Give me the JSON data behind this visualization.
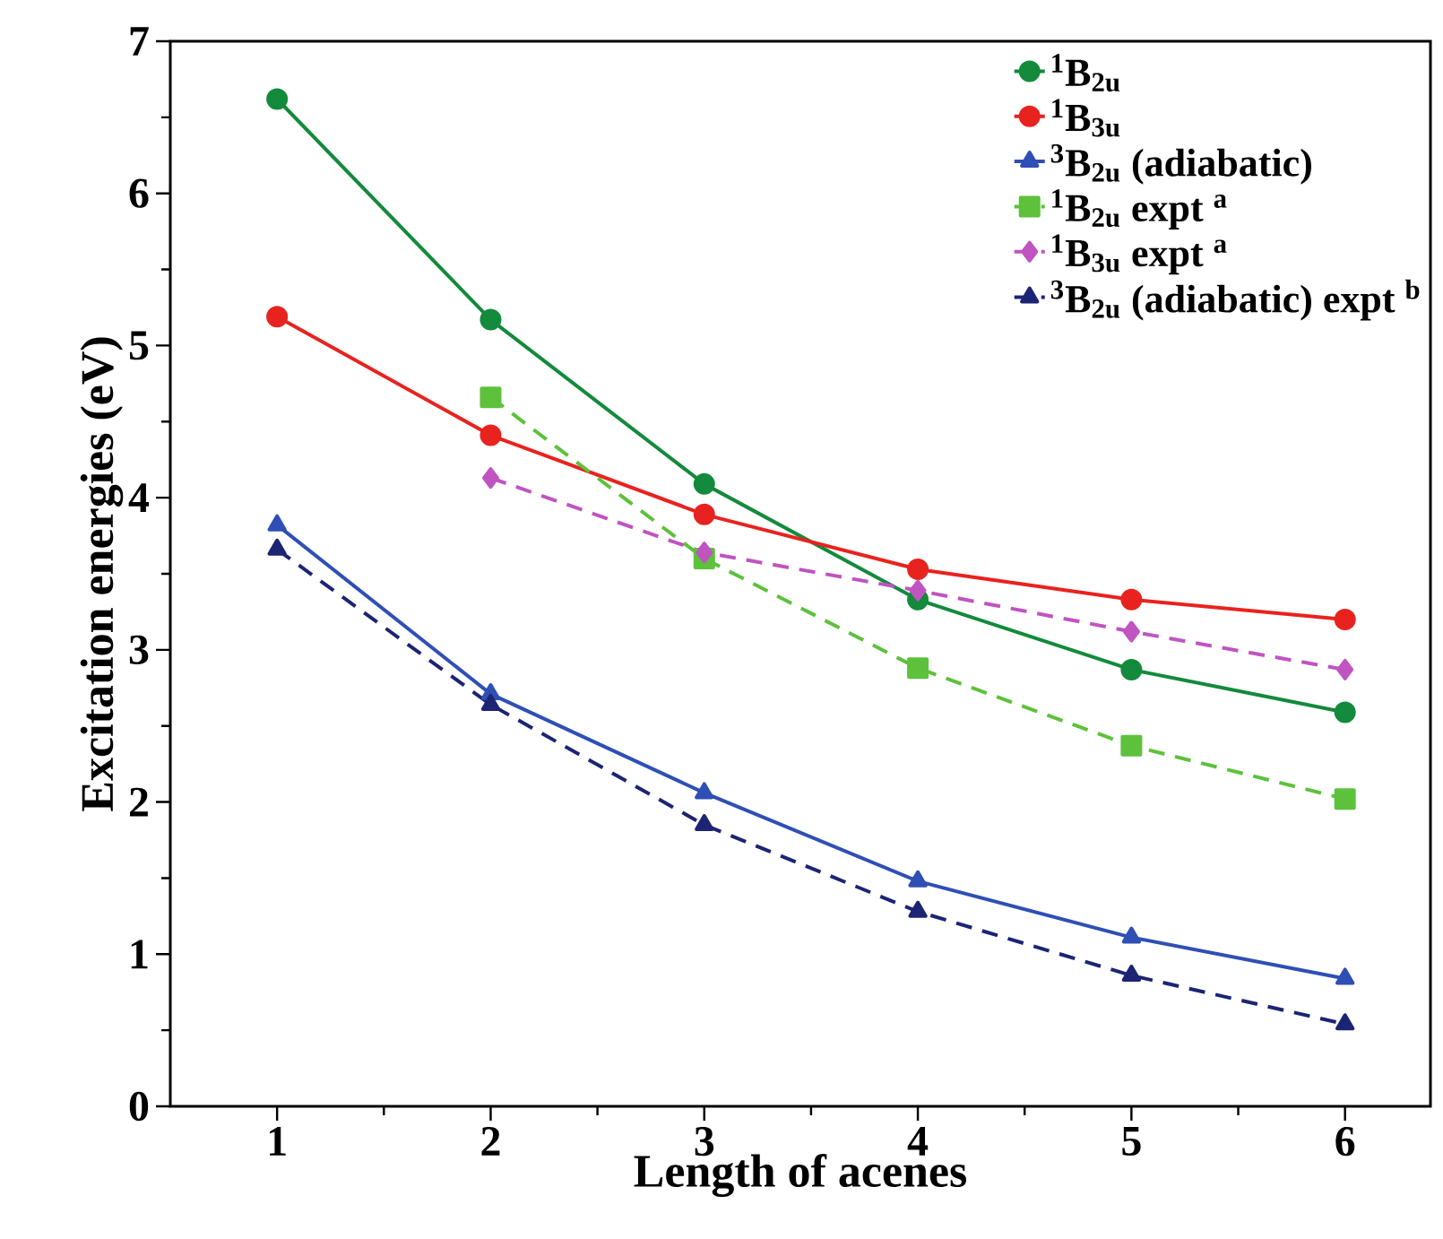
{
  "chart_data": {
    "type": "line",
    "xlabel": "Length of acenes",
    "ylabel": "Excitation energies (eV)",
    "x": [
      1,
      2,
      3,
      4,
      5,
      6
    ],
    "xlim": [
      0.5,
      6.4
    ],
    "ylim": [
      0,
      7
    ],
    "xticks": [
      1,
      2,
      3,
      4,
      5,
      6
    ],
    "yticks": [
      0,
      1,
      2,
      3,
      4,
      5,
      6,
      7
    ],
    "grid": false,
    "legend": "top right",
    "series": [
      {
        "name": "$^{1}$B$_{2u}$",
        "color": "#138a3c",
        "marker": "circle",
        "line_style": "solid",
        "values": [
          6.62,
          5.17,
          4.09,
          3.33,
          2.87,
          2.59
        ]
      },
      {
        "name": "$^{1}$B$_{3u}$",
        "color": "#e8231f",
        "marker": "circle",
        "line_style": "solid",
        "values": [
          5.19,
          4.41,
          3.89,
          3.53,
          3.33,
          3.2
        ]
      },
      {
        "name": "$^{3}$B$_{2u}$ (adiabatic)",
        "color": "#2f4fb5",
        "marker": "triangle",
        "line_style": "solid",
        "values": [
          3.82,
          2.71,
          2.06,
          1.48,
          1.11,
          0.84
        ]
      },
      {
        "name": "$^{1}$B$_{2u}$ expt $^{a}$",
        "color": "#5dc13c",
        "marker": "square",
        "line_style": "dashed",
        "values": [
          null,
          4.66,
          3.6,
          2.88,
          2.37,
          2.02
        ]
      },
      {
        "name": "$^{1}$B$_{3u}$ expt $^{a}$",
        "color": "#c054c0",
        "marker": "diamond",
        "line_style": "dashed",
        "values": [
          null,
          4.13,
          3.64,
          3.39,
          3.12,
          2.87
        ]
      },
      {
        "name": "$^{3}$B$_{2u}$ (adiabatic) expt $^{b}$",
        "color": "#1c2473",
        "marker": "triangle",
        "line_style": "dashed",
        "values": [
          3.66,
          2.64,
          1.85,
          1.28,
          0.86,
          0.54
        ]
      }
    ]
  }
}
